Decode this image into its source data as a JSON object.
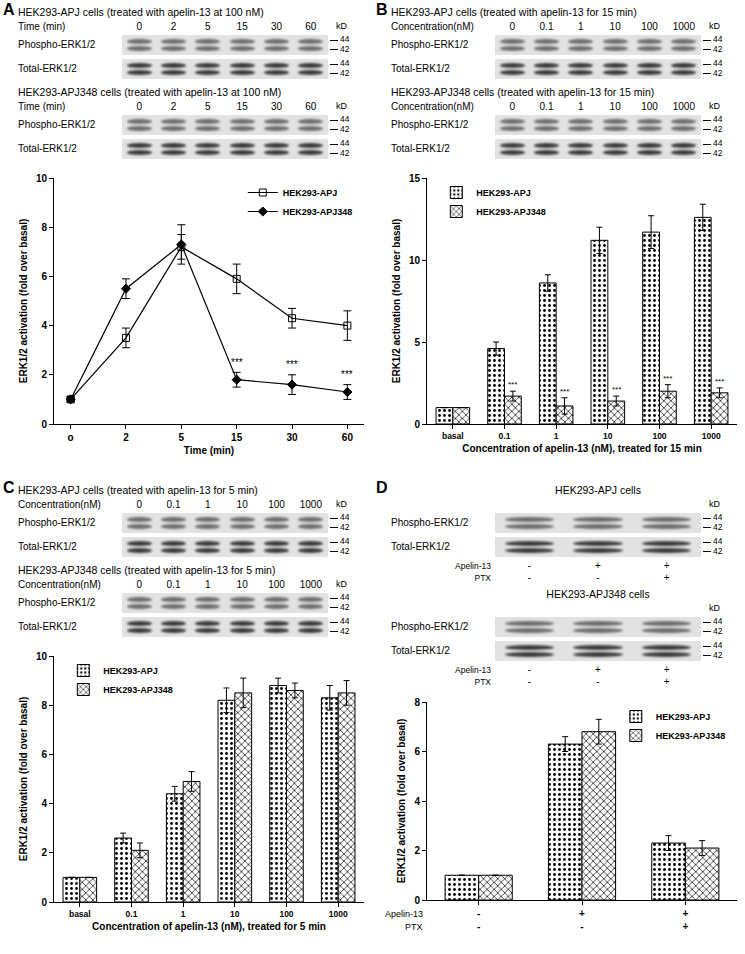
{
  "chart_data": [
    {
      "type": "line",
      "categories": [
        "o",
        "2",
        "5",
        "15",
        "30",
        "60"
      ],
      "x_label": "Time (min)",
      "y_label": "ERK1/2 activation (fold over basal)",
      "ylim": [
        0,
        10
      ],
      "yticks": [
        0,
        2,
        4,
        6,
        8,
        10
      ],
      "grid": false,
      "legend": "upper right",
      "series": [
        {
          "name": "HEK293-APJ",
          "color": "#000000",
          "marker": "square-open",
          "values": [
            1,
            3.5,
            7.2,
            5.9,
            4.3,
            4.0
          ],
          "errors": [
            0.1,
            0.4,
            0.5,
            0.6,
            0.4,
            0.6
          ]
        },
        {
          "name": "HEK293-APJ348",
          "color": "#000000",
          "marker": "diamond",
          "values": [
            1,
            5.5,
            7.3,
            1.8,
            1.6,
            1.3
          ],
          "errors": [
            0.1,
            0.4,
            0.8,
            0.3,
            0.4,
            0.3
          ]
        }
      ],
      "annotations": [
        {
          "text": "***",
          "x": "15",
          "y": 2.2
        },
        {
          "text": "***",
          "x": "30",
          "y": 2.1
        },
        {
          "text": "***",
          "x": "60",
          "y": 1.7
        }
      ]
    },
    {
      "type": "bar",
      "categories": [
        "basal",
        "0.1",
        "1",
        "10",
        "100",
        "1000"
      ],
      "x_label": "Concentration of apelin-13 (nM), treated for 15 min",
      "y_label": "ERK1/2 activation (fold over basal)",
      "ylim": [
        0,
        15
      ],
      "yticks": [
        0,
        5,
        10,
        15
      ],
      "grid": false,
      "legend": "upper left",
      "series": [
        {
          "name": "HEK293-APJ",
          "color": "#000000",
          "marker": "dots",
          "values": [
            1,
            4.6,
            8.6,
            11.2,
            11.7,
            12.6
          ],
          "errors": [
            0,
            0.4,
            0.5,
            0.8,
            1.0,
            0.8
          ]
        },
        {
          "name": "HEK293-APJ348",
          "color": "#000000",
          "marker": "crosshatch",
          "values": [
            1,
            1.7,
            1.1,
            1.4,
            2.0,
            1.9
          ],
          "errors": [
            0,
            0.3,
            0.5,
            0.3,
            0.4,
            0.3
          ]
        }
      ],
      "annotations": [
        {
          "text": "***",
          "x": "0.1",
          "y": 2.0
        },
        {
          "text": "***",
          "x": "1",
          "y": 1.6
        },
        {
          "text": "***",
          "x": "10",
          "y": 1.7
        },
        {
          "text": "***",
          "x": "100",
          "y": 2.4
        },
        {
          "text": "***",
          "x": "1000",
          "y": 2.2
        }
      ]
    },
    {
      "type": "bar",
      "categories": [
        "basal",
        "0.1",
        "1",
        "10",
        "100",
        "1000"
      ],
      "x_label": "Concentration of apelin-13 (nM), treated for 5 min",
      "y_label": "ERK1/2 activation (fold over basal)",
      "ylim": [
        0,
        10
      ],
      "yticks": [
        0,
        2,
        4,
        6,
        8,
        10
      ],
      "grid": false,
      "legend": "upper left",
      "series": [
        {
          "name": "HEK293-APJ",
          "color": "#000000",
          "marker": "dots",
          "values": [
            1,
            2.6,
            4.4,
            8.2,
            8.8,
            8.3
          ],
          "errors": [
            0,
            0.2,
            0.3,
            0.5,
            0.3,
            0.5
          ]
        },
        {
          "name": "HEK293-APJ348",
          "color": "#000000",
          "marker": "crosshatch",
          "values": [
            1,
            2.1,
            4.9,
            8.5,
            8.6,
            8.5
          ],
          "errors": [
            0,
            0.3,
            0.4,
            0.6,
            0.3,
            0.5
          ]
        }
      ]
    },
    {
      "type": "bar",
      "x_rows": [
        {
          "label": "Apelin-13",
          "values": [
            "-",
            "+",
            "+"
          ]
        },
        {
          "label": "PTX",
          "values": [
            "-",
            "-",
            "+"
          ]
        }
      ],
      "y_label": "ERK1/2 activation (fold over basal)",
      "ylim": [
        0,
        8
      ],
      "yticks": [
        0,
        2,
        4,
        6,
        8
      ],
      "grid": false,
      "legend": "upper right",
      "series": [
        {
          "name": "HEK293-APJ",
          "color": "#000000",
          "marker": "dots",
          "values": [
            1,
            6.3,
            2.3
          ],
          "errors": [
            0,
            0.3,
            0.3
          ]
        },
        {
          "name": "HEK293-APJ348",
          "color": "#000000",
          "marker": "crosshatch",
          "values": [
            1,
            6.8,
            2.1
          ],
          "errors": [
            0,
            0.5,
            0.3
          ]
        }
      ]
    }
  ],
  "panels": [
    {
      "letter": "A",
      "blots": [
        {
          "title": "HEK293-APJ cells (treated with apelin-13 at 100 nM)",
          "lane_title": "Time (min)",
          "lanes": [
            "0",
            "2",
            "5",
            "15",
            "30",
            "60"
          ],
          "rows": [
            "Phospho-ERK1/2",
            "Total-ERK1/2"
          ],
          "unit": "kD",
          "markers": [
            44,
            42
          ]
        },
        {
          "title": "HEK293-APJ348 cells (treated with apelin-13 at 100 nM)",
          "lane_title": "Time (min)",
          "lanes": [
            "0",
            "2",
            "5",
            "15",
            "30",
            "60"
          ],
          "rows": [
            "Phospho-ERK1/2",
            "Total-ERK1/2"
          ],
          "unit": "kD",
          "markers": [
            44,
            42
          ]
        }
      ]
    },
    {
      "letter": "B",
      "blots": [
        {
          "title": "HEK293-APJ cells (treated with apelin-13 for 15 min)",
          "lane_title": "Concentration(nM)",
          "lanes": [
            "0",
            "0.1",
            "1",
            "10",
            "100",
            "1000"
          ],
          "rows": [
            "Phospho-ERK1/2",
            "Total-ERK1/2"
          ],
          "unit": "kD",
          "markers": [
            44,
            42
          ]
        },
        {
          "title": "HEK293-APJ348 cells (treated with apelin-13 for 15 min)",
          "lane_title": "Concentration(nM)",
          "lanes": [
            "0",
            "0.1",
            "1",
            "10",
            "100",
            "1000"
          ],
          "rows": [
            "Phospho-ERK1/2",
            "Total-ERK1/2"
          ],
          "unit": "kD",
          "markers": [
            44,
            42
          ]
        }
      ]
    },
    {
      "letter": "C",
      "blots": [
        {
          "title": "HEK293-APJ cells (treated with apelin-13 for 5 min)",
          "lane_title": "Concentration(nM)",
          "lanes": [
            "0",
            "0.1",
            "1",
            "10",
            "100",
            "1000"
          ],
          "rows": [
            "Phospho-ERK1/2",
            "Total-ERK1/2"
          ],
          "unit": "kD",
          "markers": [
            44,
            42
          ]
        },
        {
          "title": "HEK293-APJ348 cells (treated with apelin-13 for 5 min)",
          "lane_title": "Concentration(nM)",
          "lanes": [
            "0",
            "0.1",
            "1",
            "10",
            "100",
            "1000"
          ],
          "rows": [
            "Phospho-ERK1/2",
            "Total-ERK1/2"
          ],
          "unit": "kD",
          "markers": [
            44,
            42
          ]
        }
      ]
    },
    {
      "letter": "D",
      "blots": [
        {
          "title": "HEK293-APJ cells",
          "rows": [
            "Phospho-ERK1/2",
            "Total-ERK1/2"
          ],
          "unit": "kD",
          "markers": [
            44,
            42
          ],
          "treatments": [
            {
              "label": "Apelin-13",
              "values": [
                "-",
                "+",
                "+"
              ]
            },
            {
              "label": "PTX",
              "values": [
                "-",
                "-",
                "+"
              ]
            }
          ]
        },
        {
          "title": "HEK293-APJ348 cells",
          "rows": [
            "Phospho-ERK1/2",
            "Total-ERK1/2"
          ],
          "unit": "kD",
          "markers": [
            44,
            42
          ],
          "treatments": [
            {
              "label": "Apelin-13",
              "values": [
                "-",
                "+",
                "+"
              ]
            },
            {
              "label": "PTX",
              "values": [
                "-",
                "-",
                "+"
              ]
            }
          ]
        }
      ]
    }
  ]
}
